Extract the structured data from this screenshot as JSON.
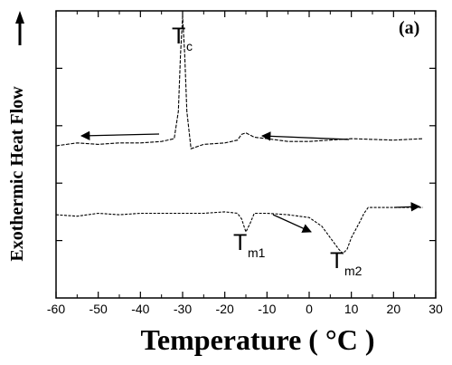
{
  "chart_data": {
    "type": "line",
    "panel_label": "(a)",
    "xlabel": "Temperature ( °C )",
    "ylabel": "Exothermic Heat Flow",
    "xlim": [
      -60,
      30
    ],
    "xticks": [
      "-60",
      "-50",
      "-40",
      "-30",
      "-20",
      "-10",
      "0",
      "10",
      "20",
      "30"
    ],
    "grid": false,
    "annotations": [
      {
        "text": "T",
        "sub": "c",
        "x": -30
      },
      {
        "text": "T",
        "sub": "m1",
        "x": -15
      },
      {
        "text": "T",
        "sub": "m2",
        "x": 8
      }
    ],
    "series": [
      {
        "x": [
          -60,
          -55,
          -50,
          -45,
          -40,
          -35,
          -32,
          -31,
          -30.5,
          -30,
          -29.5,
          -29,
          -28,
          -25,
          -20,
          -17,
          -16,
          -15,
          -13,
          -10,
          -5,
          0,
          5,
          10,
          20,
          27
        ],
        "y": [
          0.06,
          0.08,
          0.07,
          0.08,
          0.08,
          0.09,
          0.11,
          0.3,
          0.7,
          0.96,
          0.7,
          0.3,
          0.04,
          0.07,
          0.08,
          0.1,
          0.14,
          0.15,
          0.12,
          0.11,
          0.09,
          0.09,
          0.1,
          0.11,
          0.1,
          0.11
        ]
      },
      {
        "x": [
          -60,
          -55,
          -50,
          -45,
          -40,
          -35,
          -30,
          -25,
          -20,
          -17,
          -16,
          -15,
          -14,
          -13,
          -10,
          -5,
          0,
          3,
          5,
          7,
          8,
          9,
          10,
          12,
          13,
          14,
          20,
          25,
          27
        ],
        "y": [
          -0.42,
          -0.43,
          -0.41,
          -0.42,
          -0.41,
          -0.41,
          -0.41,
          -0.41,
          -0.4,
          -0.41,
          -0.45,
          -0.54,
          -0.48,
          -0.41,
          -0.41,
          -0.42,
          -0.44,
          -0.5,
          -0.58,
          -0.66,
          -0.69,
          -0.66,
          -0.58,
          -0.47,
          -0.41,
          -0.37,
          -0.37,
          -0.37,
          -0.37
        ]
      }
    ]
  }
}
